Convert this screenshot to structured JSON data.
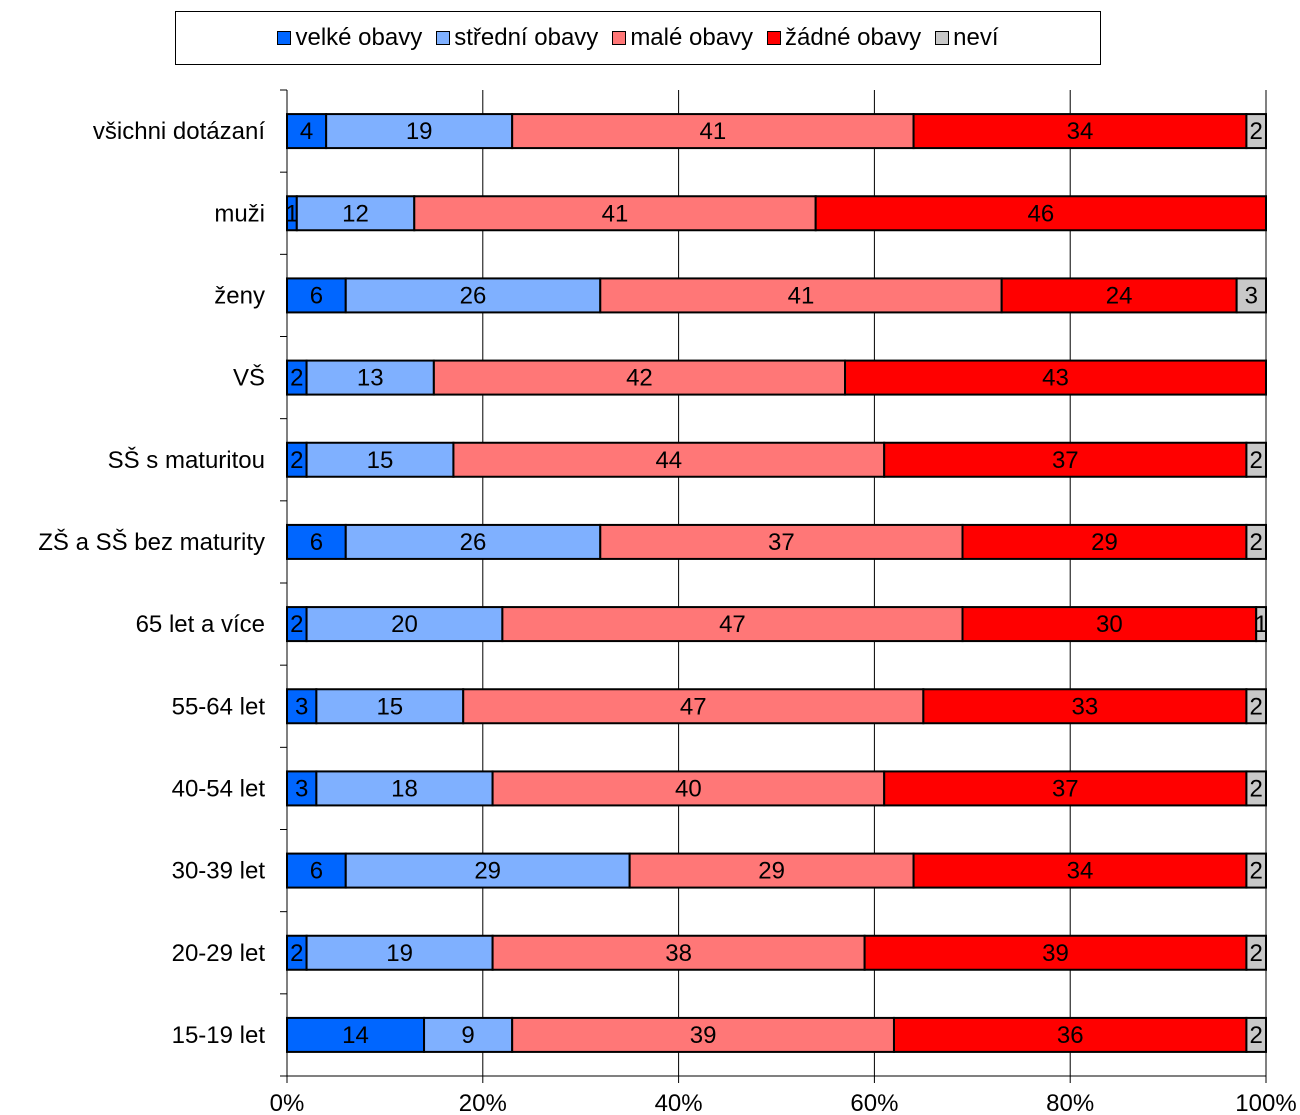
{
  "chart_data": {
    "type": "bar",
    "orientation": "horizontal",
    "stacked": "percent",
    "categories": [
      "všichni dotázaní",
      "muži",
      "ženy",
      "VŠ",
      "SŠ s maturitou",
      "ZŠ a SŠ bez maturity",
      "65 let a více",
      "55-64 let",
      "40-54 let",
      "30-39 let",
      "20-29 let",
      "15-19 let"
    ],
    "series": [
      {
        "name": "velké obavy",
        "color": "#0066ff",
        "values": [
          4,
          1,
          6,
          2,
          2,
          6,
          2,
          3,
          3,
          6,
          2,
          14
        ]
      },
      {
        "name": "střední obavy",
        "color": "#7fb0ff",
        "values": [
          19,
          12,
          26,
          13,
          15,
          26,
          20,
          15,
          18,
          29,
          19,
          9
        ]
      },
      {
        "name": "malé obavy",
        "color": "#ff7777",
        "values": [
          41,
          41,
          41,
          42,
          44,
          37,
          47,
          47,
          40,
          29,
          38,
          39
        ]
      },
      {
        "name": "žádné obavy",
        "color": "#ff0000",
        "values": [
          34,
          46,
          24,
          43,
          37,
          29,
          30,
          33,
          37,
          34,
          39,
          36
        ]
      },
      {
        "name": "neví",
        "color": "#c8c8c8",
        "values": [
          2,
          0,
          3,
          0,
          2,
          2,
          1,
          2,
          2,
          2,
          2,
          2
        ]
      }
    ],
    "xticks": [
      "0%",
      "20%",
      "40%",
      "60%",
      "80%",
      "100%"
    ],
    "xlim": [
      0,
      100
    ],
    "grid": true,
    "legend_position": "top"
  }
}
